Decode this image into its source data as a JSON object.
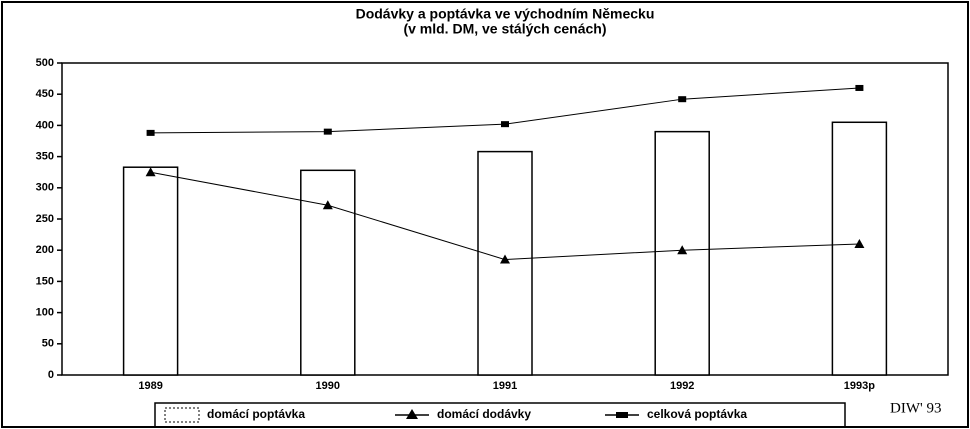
{
  "chart_data": {
    "type": "bar",
    "title": "Dodávky a poptávka ve východním Německu",
    "subtitle": "(v mld. DM, ve stálých cenách)",
    "categories": [
      "1989",
      "1990",
      "1991",
      "1992",
      "1993p"
    ],
    "series": [
      {
        "name": "domácí poptávka",
        "type": "bar",
        "color": "#ffffff",
        "values": [
          333,
          328,
          358,
          390,
          405
        ]
      },
      {
        "name": "domácí dodávky",
        "type": "line",
        "marker": "triangle",
        "color": "#000000",
        "values": [
          325,
          272,
          185,
          200,
          210
        ]
      },
      {
        "name": "celková poptávka",
        "type": "line",
        "marker": "square",
        "color": "#000000",
        "values": [
          388,
          390,
          402,
          442,
          460
        ]
      }
    ],
    "ylim": [
      0,
      500
    ],
    "yticks": [
      0,
      50,
      100,
      150,
      200,
      250,
      300,
      350,
      400,
      450,
      500
    ],
    "grid": false,
    "annotation": "DIW' 93"
  }
}
